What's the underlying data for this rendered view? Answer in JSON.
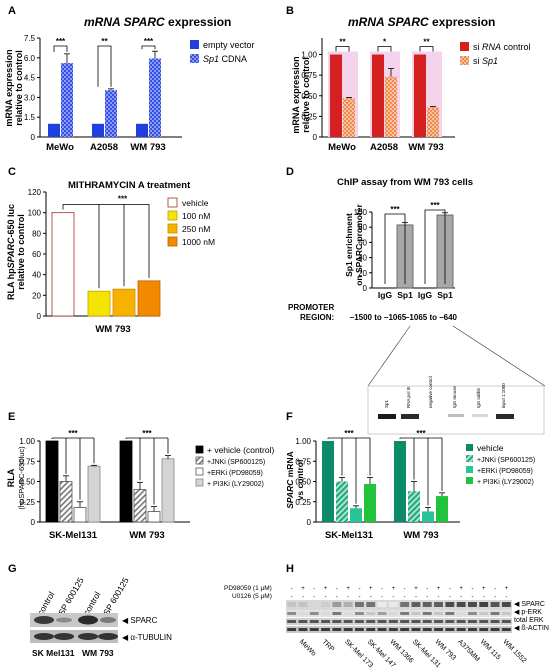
{
  "panels": {
    "A": {
      "letter": "A",
      "title_prefix": "mRNA ",
      "title_gene": "SPARC",
      "title_suffix": "  expression",
      "ylabel": [
        "mRNA expression",
        "relative to control"
      ],
      "ylim": [
        0,
        7.5
      ],
      "yticks": [
        "0",
        "1.5",
        "3.0",
        "4.5",
        "6.0",
        "7.5"
      ],
      "ytick_values": [
        0,
        1.5,
        3.0,
        4.5,
        6.0,
        7.5
      ],
      "categories": [
        "MeWo",
        "A2058",
        "WM 793"
      ],
      "legend": [
        {
          "label": "empty vector",
          "gene": ""
        },
        {
          "label": " CDNA",
          "gene": "Sp1"
        }
      ],
      "significance": [
        "***",
        "**",
        "***"
      ],
      "colors": {
        "vector": "#1f3fe0",
        "sp1": "#3a55e8"
      }
    },
    "B": {
      "letter": "B",
      "title_prefix": "mRNA ",
      "title_gene": "SPARC",
      "title_suffix": "  expression",
      "ylabel": [
        "mRNA expression",
        "relative to control"
      ],
      "ylim": [
        0,
        1.2
      ],
      "yticks": [
        "0",
        "0.25",
        "0.50",
        "0.75",
        "1.00"
      ],
      "ytick_values": [
        0,
        0.25,
        0.5,
        0.75,
        1.0
      ],
      "categories": [
        "MeWo",
        "A2058",
        "WM 793"
      ],
      "legend": [
        {
          "prefix": "si ",
          "gene": "RNA",
          "suffix": " control"
        },
        {
          "prefix": "si ",
          "gene": "Sp1",
          "suffix": ""
        }
      ],
      "significance": [
        "**",
        "*",
        "**"
      ],
      "colors": {
        "control": "#d42020",
        "sp1": "#f2a070"
      }
    },
    "C": {
      "letter": "C",
      "title": "MITHRAMYCIN A treatment",
      "ylabel_prefix": "RLA  hp",
      "ylabel_gene": "SPARC",
      "ylabel_suffix": "-650 luc",
      "ylabel_line2": "relative to control",
      "ylim": [
        0,
        120
      ],
      "yticks": [
        "0",
        "20",
        "40",
        "60",
        "80",
        "100",
        "120"
      ],
      "ytick_values": [
        0,
        20,
        40,
        60,
        80,
        100,
        120
      ],
      "xlabel": "WM 793",
      "legend": [
        "vehicle",
        "100 nM",
        "250 nM",
        "1000 nM"
      ],
      "significance": "***",
      "colors": [
        "#ffffff",
        "#f5e400",
        "#f7b200",
        "#f28a00"
      ]
    },
    "D": {
      "letter": "D",
      "title": "ChIP assay from WM 793 cells",
      "ylabel": [
        "Sp1 enrichment",
        "on SPARC promoter"
      ],
      "ylim": [
        0,
        100
      ],
      "yticks": [
        "0",
        "20",
        "40",
        "60",
        "80",
        "100"
      ],
      "ytick_values": [
        0,
        20,
        40,
        60,
        80,
        100
      ],
      "bar_labels": [
        "IgG",
        "Sp1",
        "IgG",
        "Sp1"
      ],
      "significance": [
        "***",
        "***"
      ],
      "promoter_label": [
        "PROMOTER",
        "REGION:"
      ],
      "regions": [
        "–1500 to –1065",
        "–1065 to –640"
      ],
      "gel_lanes": [
        "Sp1",
        "RNA pol III",
        "negative control",
        "IgG mouse",
        "IgG rabbit",
        "input 1:1000"
      ]
    },
    "E": {
      "letter": "E",
      "ylabel": [
        "RLA",
        "(hpSPARC-650luc)"
      ],
      "ylim": [
        0,
        1.0
      ],
      "yticks": [
        "0",
        "0.25",
        "0.50",
        "0.75",
        "1.00"
      ],
      "ytick_values": [
        0,
        0.25,
        0.5,
        0.75,
        1.0
      ],
      "categories": [
        "SK-Mel131",
        "WM 793"
      ],
      "legend": [
        "+ vehicle (control)",
        "+JNKi (SP600125)",
        "+ERKi (PD98059)",
        "+ PI3Ki (LY29002)"
      ],
      "significance": [
        "***",
        "***"
      ]
    },
    "F": {
      "letter": "F",
      "ylabel_gene": "SPARC",
      "ylabel_suffix": " mRNA",
      "ylabel_line2": "vs control",
      "ylim": [
        0,
        1.0
      ],
      "yticks": [
        "0",
        "0.25",
        "0.50",
        "0.75",
        "1.00"
      ],
      "ytick_values": [
        0,
        0.25,
        0.5,
        0.75,
        1.0
      ],
      "categories": [
        "SK-Mel131",
        "WM 793"
      ],
      "legend": [
        "vehicle",
        "+JNKi (SP600125)",
        "+ERKi (PD98059)",
        "+ PI3Ki (LY29002)"
      ],
      "significance": [
        "***",
        "***"
      ],
      "colors": [
        "#0d8a6a",
        "#38b890",
        "#26c496",
        "#22c23a"
      ]
    },
    "G": {
      "letter": "G",
      "lane_labels": [
        "control",
        "SP 600125",
        "control",
        "SP 600125"
      ],
      "band_labels": [
        "SPARC",
        "α-TUBULIN"
      ],
      "cell_lines": [
        "SK Mel131",
        "WM 793"
      ]
    },
    "H": {
      "letter": "H",
      "treatments": [
        "PD98059 (1 μM)",
        "U0126 (5 μM)"
      ],
      "band_labels": [
        "SPARC",
        "p-ERK",
        "total ERK",
        "ß-ACTIN"
      ],
      "cell_lines": [
        "MeWo",
        "TRP",
        "SK-Mel 173",
        "SK-Mel 147",
        "WM 1366",
        "SK-Mel 131",
        "WM 793",
        "A375MM",
        "WM 115",
        "WM 1552"
      ]
    }
  },
  "chart_data": [
    {
      "type": "bar",
      "panel": "A",
      "title": "mRNA SPARC  expression",
      "ylabel": "mRNA expression relative to control",
      "categories": [
        "MeWo",
        "A2058",
        "WM 793"
      ],
      "series": [
        {
          "name": "empty vector",
          "values": [
            1.0,
            1.0,
            1.0
          ],
          "errors": [
            0,
            0,
            0
          ]
        },
        {
          "name": "Sp1 CDNA",
          "values": [
            5.6,
            3.55,
            5.95
          ],
          "errors": [
            0.7,
            0.1,
            0.55
          ]
        }
      ],
      "ylim": [
        0,
        7.5
      ]
    },
    {
      "type": "bar",
      "panel": "B",
      "title": "mRNA SPARC  expression",
      "ylabel": "mRNA expression relative to control",
      "categories": [
        "MeWo",
        "A2058",
        "WM 793"
      ],
      "series": [
        {
          "name": "si RNA control",
          "values": [
            1.0,
            1.0,
            1.0
          ],
          "errors": [
            0,
            0,
            0
          ]
        },
        {
          "name": "si Sp1",
          "values": [
            0.47,
            0.73,
            0.36
          ],
          "errors": [
            0.01,
            0.1,
            0.01
          ]
        }
      ],
      "ylim": [
        0,
        1.2
      ]
    },
    {
      "type": "bar",
      "panel": "C",
      "title": "MITHRAMYCIN A treatment",
      "ylabel": "RLA hpSPARC-650 luc relative to control",
      "xlabel": "WM 793",
      "categories": [
        "vehicle",
        "100 nM",
        "250 nM",
        "1000 nM"
      ],
      "values": [
        100,
        24,
        26,
        34
      ],
      "ylim": [
        0,
        120
      ]
    },
    {
      "type": "bar",
      "panel": "D",
      "title": "ChIP assay from WM 793 cells",
      "ylabel": "Sp1 enrichment on SPARC promoter",
      "categories": [
        "IgG",
        "Sp1",
        "IgG",
        "Sp1"
      ],
      "groups": [
        "–1500 to –1065",
        "–1065 to –640"
      ],
      "values": [
        0,
        83,
        0,
        96
      ],
      "errors": [
        0,
        3,
        0,
        3
      ],
      "ylim": [
        0,
        100
      ]
    },
    {
      "type": "bar",
      "panel": "E",
      "ylabel": "RLA (hpSPARC-650luc)",
      "categories": [
        "SK-Mel131",
        "WM 793"
      ],
      "series": [
        {
          "name": "+ vehicle (control)",
          "values": [
            1.0,
            1.0
          ],
          "errors": [
            0,
            0
          ]
        },
        {
          "name": "+JNKi (SP600125)",
          "values": [
            0.5,
            0.4
          ],
          "errors": [
            0.07,
            0.09
          ]
        },
        {
          "name": "+ERKi (PD98059)",
          "values": [
            0.18,
            0.13
          ],
          "errors": [
            0.07,
            0.06
          ]
        },
        {
          "name": "+ PI3Ki (LY29002)",
          "values": [
            0.69,
            0.78
          ],
          "errors": [
            0.01,
            0.04
          ]
        }
      ],
      "ylim": [
        0,
        1.0
      ]
    },
    {
      "type": "bar",
      "panel": "F",
      "ylabel": "SPARC mRNA vs control",
      "categories": [
        "SK-Mel131",
        "WM 793"
      ],
      "series": [
        {
          "name": "vehicle",
          "values": [
            1.0,
            1.0
          ],
          "errors": [
            0,
            0
          ]
        },
        {
          "name": "+JNKi (SP600125)",
          "values": [
            0.5,
            0.38
          ],
          "errors": [
            0.05,
            0.12
          ]
        },
        {
          "name": "+ERKi (PD98059)",
          "values": [
            0.17,
            0.13
          ],
          "errors": [
            0.03,
            0.05
          ]
        },
        {
          "name": "+ PI3Ki (LY29002)",
          "values": [
            0.47,
            0.32
          ],
          "errors": [
            0.08,
            0.04
          ]
        }
      ],
      "ylim": [
        0,
        1.0
      ]
    }
  ]
}
